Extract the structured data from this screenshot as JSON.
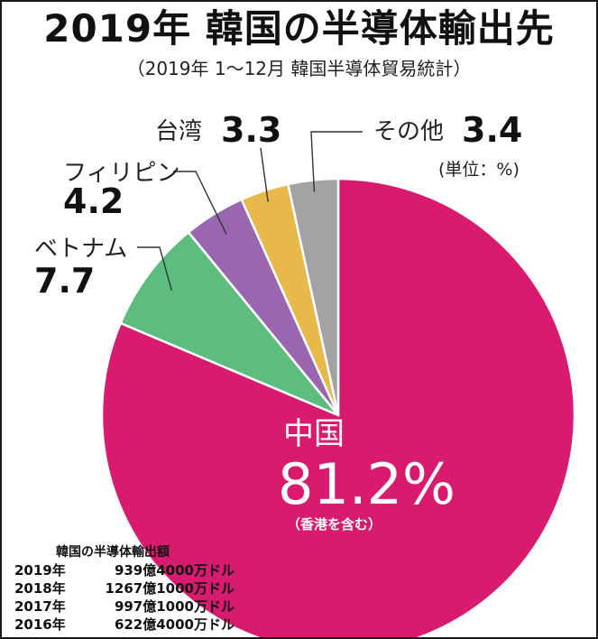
{
  "title": "2019年 韓国の半導体輸出先",
  "subtitle": "（2019年 1～12月 韓国半導体貿易統計）",
  "unit_label": "(単位：%)",
  "chart_data": {
    "type": "pie",
    "slices": [
      {
        "name": "中国",
        "value": 81.2,
        "value_label": "81.2%",
        "note": "（香港を含む）",
        "color": "#d81b6e"
      },
      {
        "name": "ベトナム",
        "value": 7.7,
        "value_label": "7.7",
        "color": "#5dbd7e"
      },
      {
        "name": "フィリピン",
        "value": 4.2,
        "value_label": "4.2",
        "color": "#9b66b0"
      },
      {
        "name": "台湾",
        "value": 3.3,
        "value_label": "3.3",
        "color": "#e8b94a"
      },
      {
        "name": "その他",
        "value": 3.4,
        "value_label": "3.4",
        "color": "#a3a3a3"
      }
    ]
  },
  "exports": {
    "title": "韓国の半導体輸出額",
    "rows": [
      {
        "year": "2019年",
        "amount": "939億4000万ドル"
      },
      {
        "year": "2018年",
        "amount": "1267億1000万ドル"
      },
      {
        "year": "2017年",
        "amount": "997億1000万ドル"
      },
      {
        "year": "2016年",
        "amount": "622億4000万ドル"
      }
    ]
  }
}
